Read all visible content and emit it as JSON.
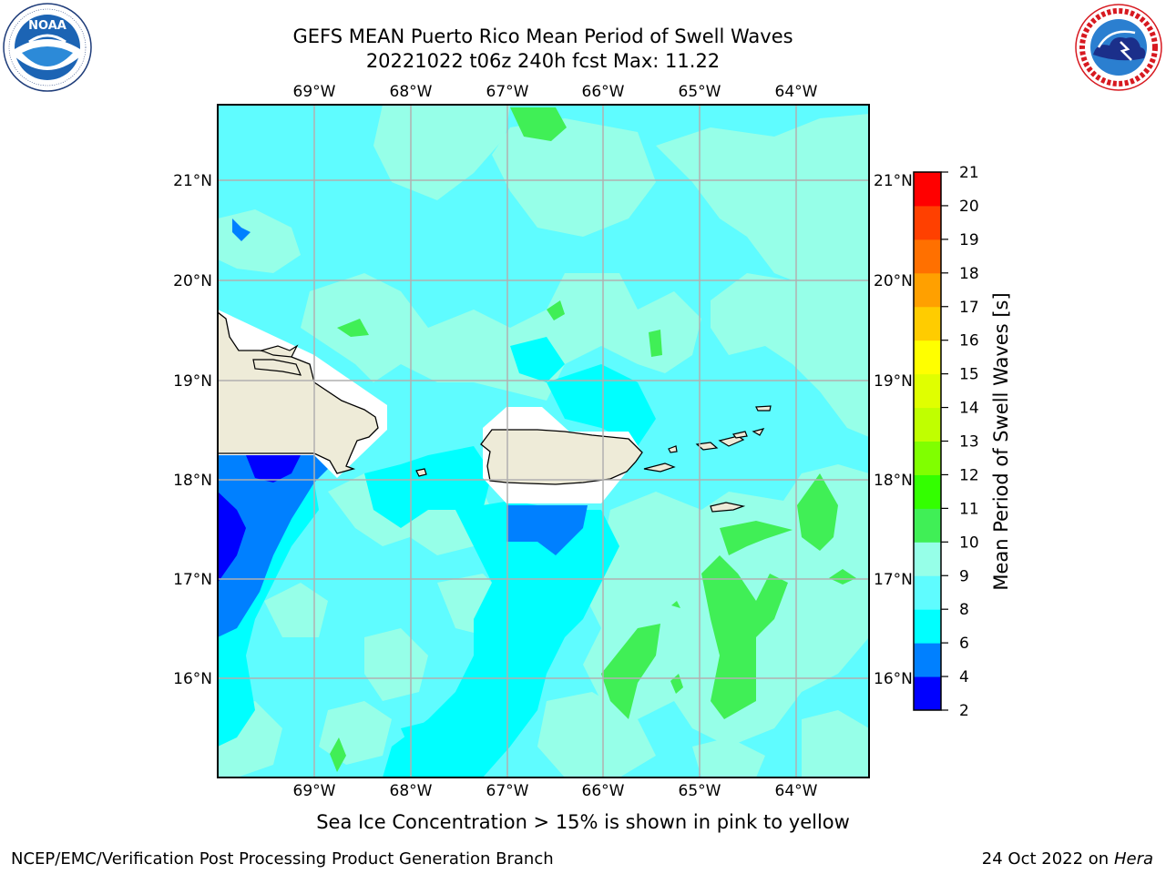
{
  "header": {
    "title_line1": "GEFS MEAN Puerto Rico Mean Period of Swell Waves",
    "title_line2": "20221022 t06z 240h fcst   Max: 11.22"
  },
  "logos": {
    "left": {
      "icon": "noaa-logo-icon",
      "ring_text": "NATIONAL OCEANIC AND ATMOSPHERIC ADMINISTRATION · U.S. DEPARTMENT OF COMMERCE",
      "center_text": "NOAA"
    },
    "right": {
      "icon": "nws-logo-icon",
      "ring_text": "NATIONAL WEATHER SERVICE"
    }
  },
  "map": {
    "longitude_labels": [
      "69°W",
      "68°W",
      "67°W",
      "66°W",
      "65°W",
      "64°W"
    ],
    "latitude_labels": [
      "21°N",
      "20°N",
      "19°N",
      "18°N",
      "17°N",
      "16°N"
    ],
    "ocean_base_color": "#5ffcff",
    "land_color": "#eeebd8",
    "masked_color": "#ffffff",
    "grid_color": "#b0b0b0"
  },
  "colorbar": {
    "label": "Mean Period of Swell Waves [s]",
    "ticks": [
      "2",
      "4",
      "6",
      "8",
      "9",
      "10",
      "11",
      "12",
      "13",
      "14",
      "15",
      "16",
      "17",
      "18",
      "19",
      "20",
      "21"
    ],
    "bins": [
      {
        "from": 2,
        "to": 4,
        "color": "#0000ff"
      },
      {
        "from": 4,
        "to": 6,
        "color": "#0080ff"
      },
      {
        "from": 6,
        "to": 8,
        "color": "#00ffff"
      },
      {
        "from": 8,
        "to": 9,
        "color": "#5ffcff"
      },
      {
        "from": 9,
        "to": 10,
        "color": "#96ffe8"
      },
      {
        "from": 10,
        "to": 11,
        "color": "#40ef56"
      },
      {
        "from": 11,
        "to": 12,
        "color": "#33ff00"
      },
      {
        "from": 12,
        "to": 13,
        "color": "#80ff00"
      },
      {
        "from": 13,
        "to": 14,
        "color": "#c0ff00"
      },
      {
        "from": 14,
        "to": 15,
        "color": "#e0ff00"
      },
      {
        "from": 15,
        "to": 16,
        "color": "#ffff00"
      },
      {
        "from": 16,
        "to": 17,
        "color": "#ffcc00"
      },
      {
        "from": 17,
        "to": 18,
        "color": "#ffa000"
      },
      {
        "from": 18,
        "to": 19,
        "color": "#ff7000"
      },
      {
        "from": 19,
        "to": 20,
        "color": "#ff4000"
      },
      {
        "from": 20,
        "to": 21,
        "color": "#ff0000"
      }
    ]
  },
  "footer": {
    "note": "Sea Ice Concentration > 15% is shown in pink to yellow",
    "branch": "NCEP/EMC/Verification Post Processing Product Generation Branch",
    "date_prefix": "24 Oct 2022 on ",
    "date_host": "Hera"
  }
}
